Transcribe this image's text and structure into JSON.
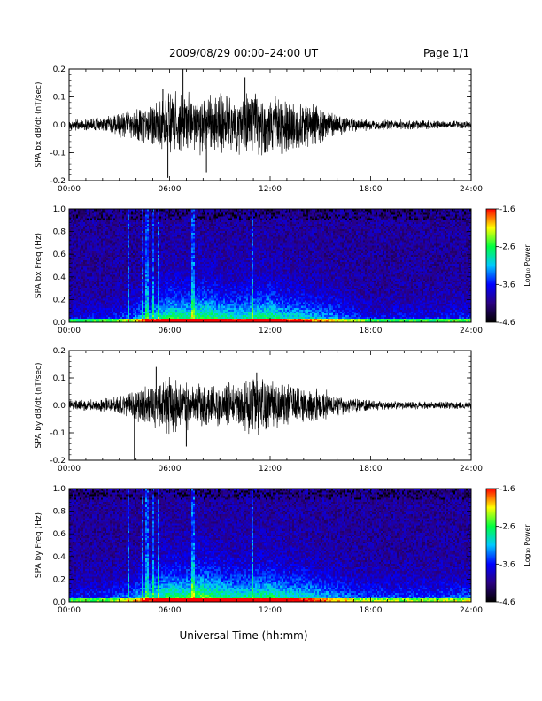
{
  "header": {
    "title": "2009/08/29  00:00–24:00 UT",
    "page": "Page 1/1"
  },
  "xlabel": "Universal Time (hh:mm)",
  "chart_data": [
    {
      "type": "line",
      "ylabel": "SPA bx dB/dt (nT/sec)",
      "xlim": [
        "00:00",
        "24:00"
      ],
      "ylim": [
        -0.2,
        0.2
      ],
      "xticks": [
        "00:00",
        "06:00",
        "12:00",
        "18:00",
        "24:00"
      ],
      "yticks": [
        "-0.2",
        "-0.1",
        "0.0",
        "0.1",
        "0.2"
      ],
      "x_hours": [
        0,
        2,
        3,
        4,
        5,
        6,
        7,
        8,
        9,
        10,
        11,
        12,
        13,
        14,
        15,
        16,
        17,
        18,
        20,
        22,
        24
      ],
      "envelope": [
        0.02,
        0.03,
        0.05,
        0.06,
        0.1,
        0.13,
        0.12,
        0.11,
        0.12,
        0.12,
        0.14,
        0.12,
        0.11,
        0.09,
        0.08,
        0.04,
        0.03,
        0.02,
        0.02,
        0.015,
        0.015
      ],
      "peaks": [
        {
          "x": 5.6,
          "y": 0.13
        },
        {
          "x": 6.8,
          "y": 0.2
        },
        {
          "x": 5.9,
          "y": -0.19
        },
        {
          "x": 8.2,
          "y": -0.17
        },
        {
          "x": 10.5,
          "y": 0.17
        }
      ]
    },
    {
      "type": "heatmap",
      "ylabel": "SPA bx Freq (Hz)",
      "xlim": [
        "00:00",
        "24:00"
      ],
      "ylim": [
        0.0,
        1.0
      ],
      "xticks": [
        "00:00",
        "06:00",
        "12:00",
        "18:00",
        "24:00"
      ],
      "yticks": [
        "0.0",
        "0.2",
        "0.4",
        "0.6",
        "0.8",
        "1.0"
      ],
      "colorbar": {
        "label": "Log₁₀ Power",
        "range": [
          -4.6,
          -1.6
        ],
        "ticks": [
          "-1.6",
          "-2.6",
          "-3.6",
          "-4.6"
        ],
        "colors": [
          "#000000",
          "#2a0080",
          "#0000ff",
          "#00c8ff",
          "#00ff40",
          "#ffff00",
          "#ff0000"
        ]
      },
      "activity_hours": [
        0,
        2,
        3.6,
        4,
        5,
        6,
        7,
        8,
        9,
        10,
        11,
        12,
        13,
        14,
        15,
        16,
        17,
        18,
        20,
        22,
        24
      ],
      "activity": [
        0.2,
        0.25,
        0.35,
        0.45,
        0.6,
        0.75,
        0.7,
        0.8,
        0.7,
        0.65,
        0.7,
        0.75,
        0.6,
        0.6,
        0.5,
        0.45,
        0.35,
        0.25,
        0.25,
        0.25,
        0.3
      ]
    },
    {
      "type": "line",
      "ylabel": "SPA by dB/dt (nT/sec)",
      "xlim": [
        "00:00",
        "24:00"
      ],
      "ylim": [
        -0.2,
        0.2
      ],
      "xticks": [
        "00:00",
        "06:00",
        "12:00",
        "18:00",
        "24:00"
      ],
      "yticks": [
        "-0.2",
        "-0.1",
        "0.0",
        "0.1",
        "0.2"
      ],
      "x_hours": [
        0,
        2,
        3,
        4,
        5,
        6,
        7,
        8,
        9,
        10,
        11,
        12,
        13,
        14,
        15,
        16,
        17,
        18,
        20,
        22,
        24
      ],
      "envelope": [
        0.02,
        0.025,
        0.04,
        0.06,
        0.09,
        0.11,
        0.1,
        0.08,
        0.08,
        0.09,
        0.12,
        0.1,
        0.08,
        0.07,
        0.07,
        0.04,
        0.03,
        0.02,
        0.015,
        0.015,
        0.015
      ],
      "peaks": [
        {
          "x": 5.2,
          "y": 0.14
        },
        {
          "x": 7.0,
          "y": -0.15
        },
        {
          "x": 11.2,
          "y": 0.12
        },
        {
          "x": 3.9,
          "y": -0.2
        }
      ]
    },
    {
      "type": "heatmap",
      "ylabel": "SPA by Freq (Hz)",
      "xlim": [
        "00:00",
        "24:00"
      ],
      "ylim": [
        0.0,
        1.0
      ],
      "xticks": [
        "00:00",
        "06:00",
        "12:00",
        "18:00",
        "24:00"
      ],
      "yticks": [
        "0.0",
        "0.2",
        "0.4",
        "0.6",
        "0.8",
        "1.0"
      ],
      "colorbar": {
        "label": "Log₁₀ Power",
        "range": [
          -4.6,
          -1.6
        ],
        "ticks": [
          "-1.6",
          "-2.6",
          "-3.6",
          "-4.6"
        ],
        "colors": [
          "#000000",
          "#2a0080",
          "#0000ff",
          "#00c8ff",
          "#00ff40",
          "#ffff00",
          "#ff0000"
        ]
      },
      "activity_hours": [
        0,
        2,
        3.6,
        4,
        5,
        6,
        7,
        8,
        9,
        10,
        11,
        12,
        13,
        14,
        15,
        16,
        17,
        18,
        20,
        22,
        24
      ],
      "activity": [
        0.25,
        0.3,
        0.4,
        0.5,
        0.65,
        0.8,
        0.75,
        0.85,
        0.75,
        0.7,
        0.7,
        0.75,
        0.65,
        0.65,
        0.55,
        0.5,
        0.4,
        0.35,
        0.35,
        0.35,
        0.4
      ]
    }
  ]
}
